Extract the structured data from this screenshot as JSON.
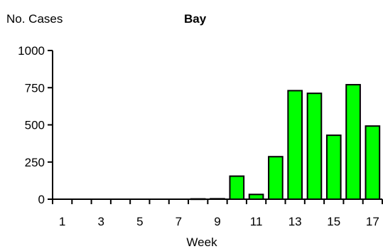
{
  "chart_data": {
    "type": "bar",
    "title": "Bay",
    "ylabel": "No. Cases",
    "xlabel": "Week",
    "ylim": [
      0,
      1000
    ],
    "yticks": [
      0,
      250,
      500,
      750,
      1000
    ],
    "x_tick_labels": [
      "1",
      "3",
      "5",
      "7",
      "9",
      "11",
      "13",
      "15",
      "17"
    ],
    "categories": [
      1,
      2,
      3,
      4,
      5,
      6,
      7,
      8,
      9,
      10,
      11,
      12,
      13,
      14,
      15,
      16,
      17
    ],
    "values": [
      0,
      0,
      0,
      0,
      0,
      0,
      0,
      2,
      3,
      155,
      32,
      286,
      730,
      712,
      430,
      770,
      492
    ],
    "bar_color": "#00ff00",
    "grid": false,
    "legend": "none"
  }
}
